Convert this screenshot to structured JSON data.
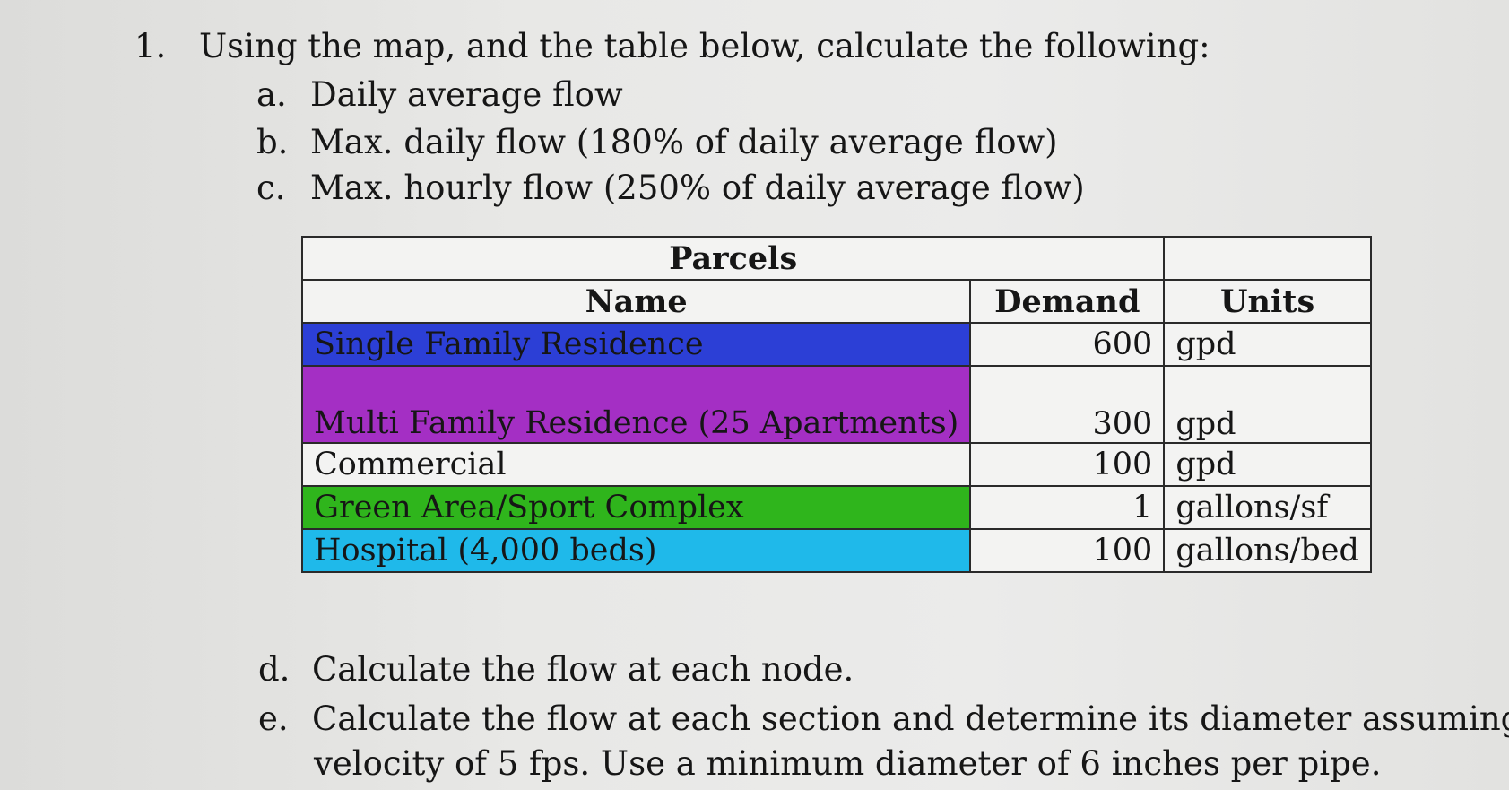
{
  "question": {
    "number": "1.",
    "text": "Using the map, and the table below, calculate the following:"
  },
  "items_top": [
    {
      "letter": "a.",
      "text": "Daily average flow"
    },
    {
      "letter": "b.",
      "text": "Max. daily flow (180% of daily average flow)"
    },
    {
      "letter": "c.",
      "text": "Max. hourly flow (250% of daily average flow)"
    }
  ],
  "table": {
    "title": "Parcels",
    "headers": {
      "name": "Name",
      "demand": "Demand",
      "units": "Units"
    },
    "rows": [
      {
        "name": "Single Family Residence",
        "demand": "600",
        "units": "gpd",
        "color": "#2c3fd6"
      },
      {
        "name": "Multi Family Residence (25 Apartments)",
        "demand": "300",
        "units": "gpd",
        "color": "#a42fc4"
      },
      {
        "name": "Commercial",
        "demand": "100",
        "units": "gpd",
        "color": "#f3f3f2"
      },
      {
        "name": "Green Area/Sport Complex",
        "demand": "1",
        "units": "gallons/sf",
        "color": "#2fb51c"
      },
      {
        "name": "Hospital (4,000 beds)",
        "demand": "100",
        "units": "gallons/bed",
        "color": "#1fb9ea"
      }
    ]
  },
  "items_bottom": [
    {
      "letter": "d.",
      "text": "Calculate the flow at each node."
    },
    {
      "letter": "e.",
      "text": "Calculate the flow at each section and determine its diameter assuming a",
      "text2": "velocity of 5 fps. Use a minimum diameter of 6 inches per pipe."
    }
  ]
}
